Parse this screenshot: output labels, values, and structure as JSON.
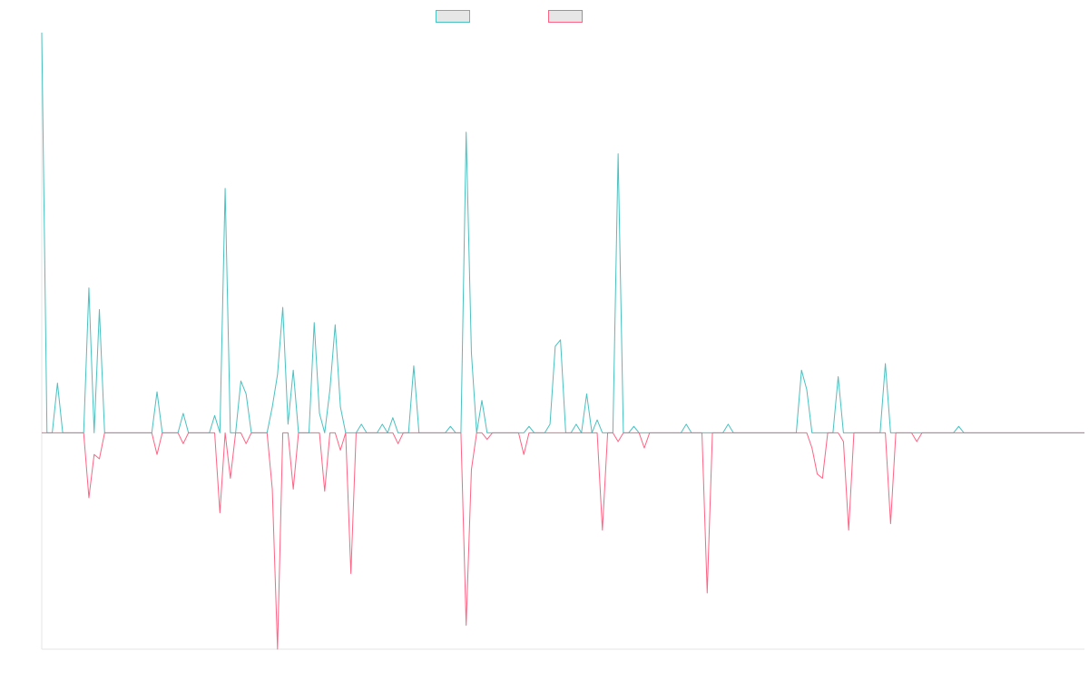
{
  "chart_data": {
    "type": "line",
    "title": "",
    "xlabel": "",
    "ylabel": "",
    "ylim": [
      -100,
      185
    ],
    "grid": false,
    "legend_position": "top-center",
    "x_count": 200,
    "series": [
      {
        "color": "#4bc0c0",
        "points": [
          [
            0,
            185
          ],
          [
            3,
            23
          ],
          [
            9,
            67
          ],
          [
            11,
            57
          ],
          [
            22,
            19
          ],
          [
            27,
            9
          ],
          [
            33,
            8
          ],
          [
            35,
            113
          ],
          [
            38,
            24
          ],
          [
            39,
            18
          ],
          [
            44,
            12
          ],
          [
            45,
            27
          ],
          [
            46,
            58
          ],
          [
            47,
            4
          ],
          [
            48,
            29
          ],
          [
            52,
            51
          ],
          [
            53,
            9
          ],
          [
            55,
            20
          ],
          [
            56,
            50
          ],
          [
            57,
            12
          ],
          [
            61,
            4
          ],
          [
            65,
            4
          ],
          [
            67,
            7
          ],
          [
            71,
            31
          ],
          [
            78,
            3
          ],
          [
            81,
            139
          ],
          [
            82,
            37
          ],
          [
            84,
            15
          ],
          [
            93,
            3
          ],
          [
            97,
            4
          ],
          [
            98,
            40
          ],
          [
            99,
            43
          ],
          [
            102,
            4
          ],
          [
            104,
            18
          ],
          [
            106,
            6
          ],
          [
            110,
            129
          ],
          [
            113,
            3
          ],
          [
            123,
            4
          ],
          [
            131,
            4
          ],
          [
            145,
            29
          ],
          [
            146,
            20
          ],
          [
            152,
            26
          ],
          [
            161,
            32
          ],
          [
            175,
            3
          ]
        ]
      },
      {
        "color": "#ff6384",
        "points": [
          [
            9,
            -30
          ],
          [
            10,
            -10
          ],
          [
            11,
            -12
          ],
          [
            22,
            -10
          ],
          [
            27,
            -5
          ],
          [
            34,
            -37
          ],
          [
            36,
            -21
          ],
          [
            39,
            -5
          ],
          [
            44,
            -26
          ],
          [
            45,
            -100
          ],
          [
            48,
            -26
          ],
          [
            54,
            -27
          ],
          [
            57,
            -8
          ],
          [
            59,
            -65
          ],
          [
            68,
            -5
          ],
          [
            81,
            -89
          ],
          [
            82,
            -17
          ],
          [
            85,
            -3
          ],
          [
            92,
            -10
          ],
          [
            107,
            -45
          ],
          [
            110,
            -4
          ],
          [
            115,
            -7
          ],
          [
            127,
            -74
          ],
          [
            147,
            -7
          ],
          [
            148,
            -19
          ],
          [
            149,
            -21
          ],
          [
            153,
            -4
          ],
          [
            154,
            -45
          ],
          [
            162,
            -42
          ],
          [
            167,
            -4
          ]
        ]
      }
    ]
  }
}
